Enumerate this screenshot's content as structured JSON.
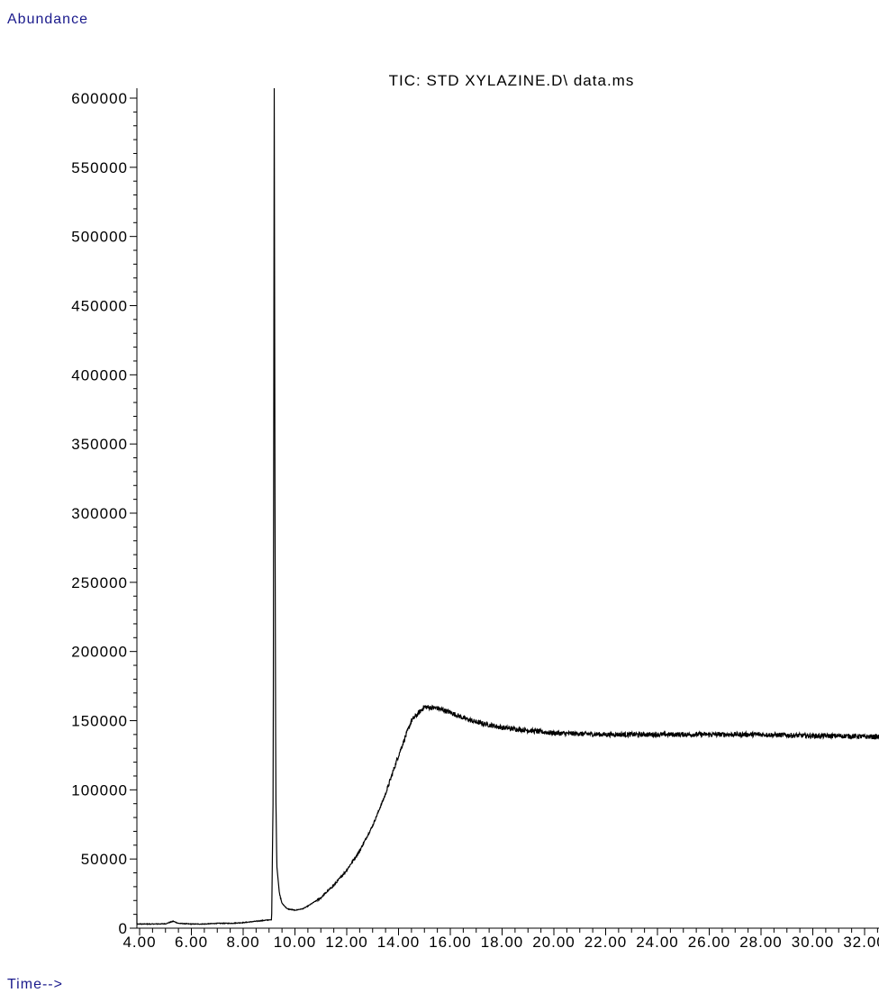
{
  "chart_data": {
    "type": "line",
    "title": "TIC: STD XYLAZINE.D\\ data.ms",
    "ylabel": "Abundance",
    "xlabel": "Time-->",
    "ylim": [
      0,
      610000
    ],
    "xlim": [
      3.0,
      33.2
    ],
    "y_ticks": [
      0,
      50000,
      100000,
      150000,
      200000,
      250000,
      300000,
      350000,
      400000,
      450000,
      500000,
      550000,
      600000
    ],
    "y_tick_labels": [
      "0",
      "50000",
      "100000",
      "150000",
      "200000",
      "250000",
      "300000",
      "350000",
      "400000",
      "450000",
      "500000",
      "550000",
      "600000"
    ],
    "x_ticks": [
      4,
      6,
      8,
      10,
      12,
      14,
      16,
      18,
      20,
      22,
      24,
      26,
      28,
      30,
      32
    ],
    "x_tick_labels": [
      "4.00",
      "6.00",
      "8.00",
      "10.00",
      "12.00",
      "14.00",
      "16.00",
      "18.00",
      "20.00",
      "22.00",
      "24.00",
      "26.00",
      "28.00",
      "30.00",
      "32.00"
    ],
    "grid": false,
    "series": [
      {
        "x": [
          3.0,
          3.2,
          3.5,
          4.0,
          4.5,
          5.0,
          5.3,
          5.5,
          6.0,
          6.5,
          7.0,
          7.5,
          8.0,
          8.5,
          9.0,
          9.1,
          9.16,
          9.2,
          9.23,
          9.26,
          9.3,
          9.4,
          9.5,
          9.7,
          10.0,
          10.3,
          10.5,
          11.0,
          11.5,
          12.0,
          12.5,
          13.0,
          13.5,
          14.0,
          14.5,
          15.0,
          15.5,
          16.0,
          16.5,
          17.0,
          18.0,
          19.0,
          20.0,
          21.0,
          22.0,
          23.0,
          24.0,
          25.0,
          26.0,
          27.0,
          28.0,
          29.0,
          30.0,
          31.0,
          32.0,
          33.0,
          33.2
        ],
        "y": [
          10000,
          6000,
          3500,
          3000,
          3000,
          3200,
          5000,
          3500,
          3000,
          3000,
          3500,
          3500,
          4000,
          5000,
          6000,
          6000,
          100000,
          610000,
          300000,
          100000,
          45000,
          25000,
          18000,
          14000,
          13000,
          14000,
          16000,
          22000,
          31000,
          42000,
          56000,
          74000,
          97000,
          125000,
          150000,
          160000,
          159000,
          156000,
          152000,
          149000,
          145000,
          143000,
          141000,
          140500,
          140000,
          140000,
          140000,
          140000,
          140000,
          140000,
          140000,
          139500,
          139000,
          139000,
          138500,
          138000,
          138000
        ]
      }
    ]
  }
}
